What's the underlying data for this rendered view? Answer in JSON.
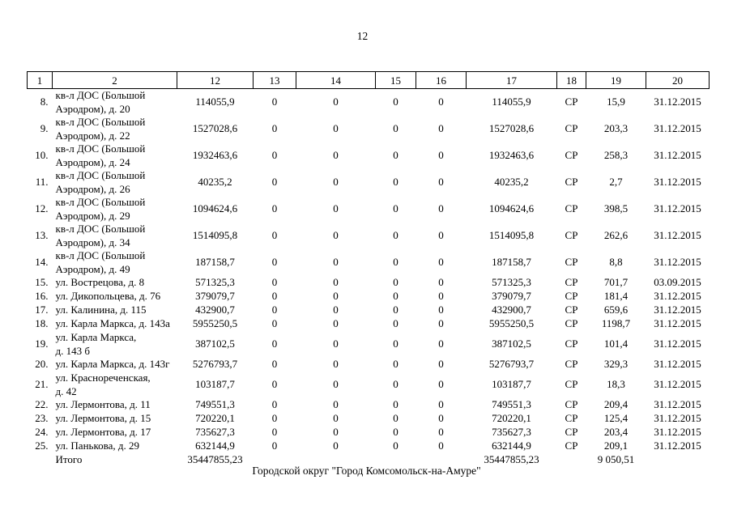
{
  "page": {
    "number": "12",
    "footer": "Городской округ \"Город Комсомольск-на-Амуре\""
  },
  "table": {
    "headers": [
      "1",
      "2",
      "12",
      "13",
      "14",
      "15",
      "16",
      "17",
      "18",
      "19",
      "20"
    ],
    "rows": [
      {
        "num": "8.",
        "address": "кв-л ДОС (Большой\nАэродром), д. 20",
        "c12": "114055,9",
        "c13": "0",
        "c14": "0",
        "c15": "0",
        "c16": "0",
        "c17": "114055,9",
        "c18": "СР",
        "c19": "15,9",
        "c20": "31.12.2015"
      },
      {
        "num": "9.",
        "address": "кв-л ДОС (Большой\nАэродром), д. 22",
        "c12": "1527028,6",
        "c13": "0",
        "c14": "0",
        "c15": "0",
        "c16": "0",
        "c17": "1527028,6",
        "c18": "СР",
        "c19": "203,3",
        "c20": "31.12.2015"
      },
      {
        "num": "10.",
        "address": "кв-л ДОС (Большой\nАэродром), д. 24",
        "c12": "1932463,6",
        "c13": "0",
        "c14": "0",
        "c15": "0",
        "c16": "0",
        "c17": "1932463,6",
        "c18": "СР",
        "c19": "258,3",
        "c20": "31.12.2015"
      },
      {
        "num": "11.",
        "address": "кв-л ДОС (Большой\nАэродром), д. 26",
        "c12": "40235,2",
        "c13": "0",
        "c14": "0",
        "c15": "0",
        "c16": "0",
        "c17": "40235,2",
        "c18": "СР",
        "c19": "2,7",
        "c20": "31.12.2015"
      },
      {
        "num": "12.",
        "address": "кв-л ДОС (Большой\nАэродром), д. 29",
        "c12": "1094624,6",
        "c13": "0",
        "c14": "0",
        "c15": "0",
        "c16": "0",
        "c17": "1094624,6",
        "c18": "СР",
        "c19": "398,5",
        "c20": "31.12.2015"
      },
      {
        "num": "13.",
        "address": "кв-л ДОС (Большой\nАэродром), д. 34",
        "c12": "1514095,8",
        "c13": "0",
        "c14": "0",
        "c15": "0",
        "c16": "0",
        "c17": "1514095,8",
        "c18": "СР",
        "c19": "262,6",
        "c20": "31.12.2015"
      },
      {
        "num": "14.",
        "address": "кв-л ДОС (Большой\nАэродром), д. 49",
        "c12": "187158,7",
        "c13": "0",
        "c14": "0",
        "c15": "0",
        "c16": "0",
        "c17": "187158,7",
        "c18": "СР",
        "c19": "8,8",
        "c20": "31.12.2015"
      },
      {
        "num": "15.",
        "address": "ул. Вострецова, д. 8",
        "c12": "571325,3",
        "c13": "0",
        "c14": "0",
        "c15": "0",
        "c16": "0",
        "c17": "571325,3",
        "c18": "СР",
        "c19": "701,7",
        "c20": "03.09.2015"
      },
      {
        "num": "16.",
        "address": "ул. Дикопольцева, д. 76",
        "c12": "379079,7",
        "c13": "0",
        "c14": "0",
        "c15": "0",
        "c16": "0",
        "c17": "379079,7",
        "c18": "СР",
        "c19": "181,4",
        "c20": "31.12.2015"
      },
      {
        "num": "17.",
        "address": "ул. Калинина, д. 115",
        "c12": "432900,7",
        "c13": "0",
        "c14": "0",
        "c15": "0",
        "c16": "0",
        "c17": "432900,7",
        "c18": "СР",
        "c19": "659,6",
        "c20": "31.12.2015"
      },
      {
        "num": "18.",
        "address": "ул. Карла Маркса, д. 143а",
        "c12": "5955250,5",
        "c13": "0",
        "c14": "0",
        "c15": "0",
        "c16": "0",
        "c17": "5955250,5",
        "c18": "СР",
        "c19": "1198,7",
        "c20": "31.12.2015"
      },
      {
        "num": "19.",
        "address": "ул. Карла Маркса,\nд. 143 б",
        "c12": "387102,5",
        "c13": "0",
        "c14": "0",
        "c15": "0",
        "c16": "0",
        "c17": "387102,5",
        "c18": "СР",
        "c19": "101,4",
        "c20": "31.12.2015"
      },
      {
        "num": "20.",
        "address": "ул. Карла Маркса, д. 143г",
        "c12": "5276793,7",
        "c13": "0",
        "c14": "0",
        "c15": "0",
        "c16": "0",
        "c17": "5276793,7",
        "c18": "СР",
        "c19": "329,3",
        "c20": "31.12.2015"
      },
      {
        "num": "21.",
        "address": "ул. Краснореченская,\nд. 42",
        "c12": "103187,7",
        "c13": "0",
        "c14": "0",
        "c15": "0",
        "c16": "0",
        "c17": "103187,7",
        "c18": "СР",
        "c19": "18,3",
        "c20": "31.12.2015"
      },
      {
        "num": "22.",
        "address": "ул. Лермонтова, д. 11",
        "c12": "749551,3",
        "c13": "0",
        "c14": "0",
        "c15": "0",
        "c16": "0",
        "c17": "749551,3",
        "c18": "СР",
        "c19": "209,4",
        "c20": "31.12.2015"
      },
      {
        "num": "23.",
        "address": "ул. Лермонтова, д. 15",
        "c12": "720220,1",
        "c13": "0",
        "c14": "0",
        "c15": "0",
        "c16": "0",
        "c17": "720220,1",
        "c18": "СР",
        "c19": "125,4",
        "c20": "31.12.2015"
      },
      {
        "num": "24.",
        "address": "ул. Лермонтова, д. 17",
        "c12": "735627,3",
        "c13": "0",
        "c14": "0",
        "c15": "0",
        "c16": "0",
        "c17": "735627,3",
        "c18": "СР",
        "c19": "203,4",
        "c20": "31.12.2015"
      },
      {
        "num": "25.",
        "address": "ул. Панькова, д. 29",
        "c12": "632144,9",
        "c13": "0",
        "c14": "0",
        "c15": "0",
        "c16": "0",
        "c17": "632144,9",
        "c18": "СР",
        "c19": "209,1",
        "c20": "31.12.2015"
      }
    ],
    "total": {
      "label": "Итого",
      "c12": "35447855,23",
      "c17": "35447855,23",
      "c19": "9 050,51"
    }
  }
}
